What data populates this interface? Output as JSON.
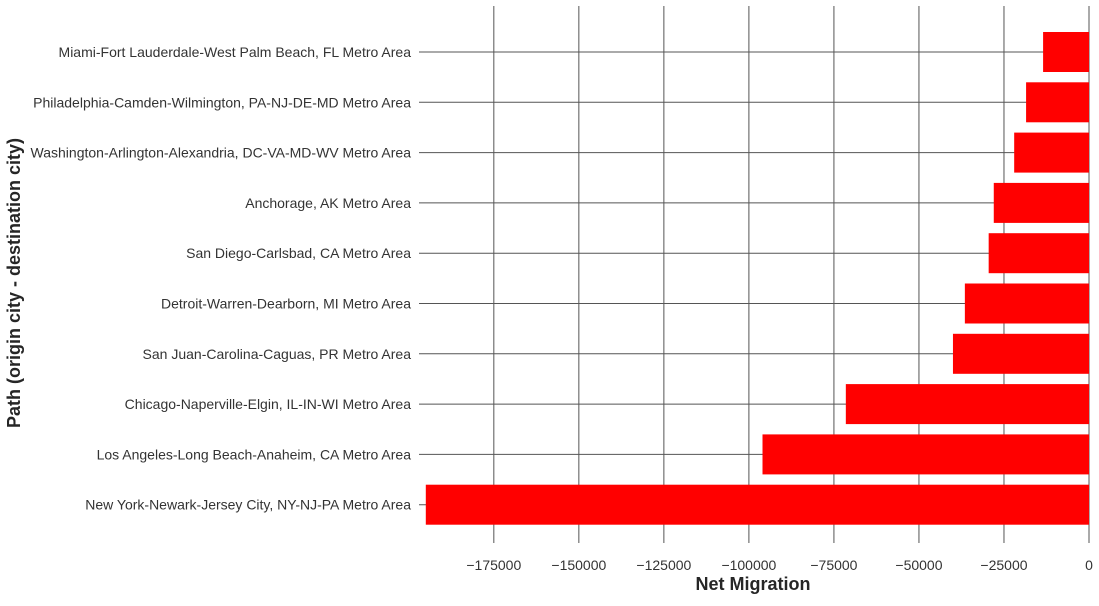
{
  "chart_data": {
    "type": "bar",
    "orientation": "horizontal",
    "xlabel": "Net Migration",
    "ylabel": "Path (origin city - destination city)",
    "xlim": [
      -197000,
      0
    ],
    "xticks": [
      -175000,
      -150000,
      -125000,
      -100000,
      -75000,
      -50000,
      -25000,
      0
    ],
    "xtick_labels": [
      "−175000",
      "−150000",
      "−125000",
      "−100000",
      "−75000",
      "−50000",
      "−25000",
      "0"
    ],
    "categories": [
      "Miami-Fort Lauderdale-West Palm Beach, FL Metro Area",
      "Philadelphia-Camden-Wilmington, PA-NJ-DE-MD Metro Area",
      "Washington-Arlington-Alexandria, DC-VA-MD-WV Metro Area",
      "Anchorage, AK Metro Area",
      "San Diego-Carlsbad, CA Metro Area",
      "Detroit-Warren-Dearborn, MI Metro Area",
      "San Juan-Carolina-Caguas, PR Metro Area",
      "Chicago-Naperville-Elgin, IL-IN-WI Metro Area",
      "Los Angeles-Long Beach-Anaheim, CA Metro Area",
      "New York-Newark-Jersey City, NY-NJ-PA Metro Area"
    ],
    "values": [
      -13500,
      -18500,
      -22000,
      -28000,
      -29500,
      -36500,
      -40000,
      -71500,
      -96000,
      -195000
    ],
    "bar_color": "#ff0000",
    "grid": true
  }
}
